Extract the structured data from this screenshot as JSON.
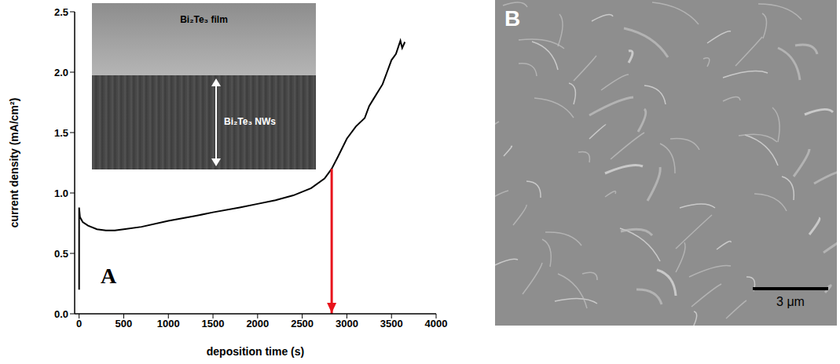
{
  "chart_data": {
    "type": "line",
    "panel_label": "A",
    "x_label": "deposition time (s)",
    "y_label": "current density (mA/cm²)",
    "x": [
      0,
      0,
      10,
      40,
      100,
      200,
      300,
      400,
      500,
      700,
      1000,
      1300,
      1500,
      1800,
      2000,
      2200,
      2400,
      2600,
      2750,
      2830,
      2900,
      3000,
      3100,
      3200,
      3250,
      3300,
      3400,
      3450,
      3500,
      3550,
      3600,
      3620,
      3650
    ],
    "values": [
      0.2,
      0.88,
      0.8,
      0.76,
      0.73,
      0.7,
      0.69,
      0.69,
      0.7,
      0.72,
      0.77,
      0.81,
      0.84,
      0.88,
      0.91,
      0.94,
      0.98,
      1.04,
      1.12,
      1.2,
      1.3,
      1.45,
      1.55,
      1.62,
      1.72,
      1.78,
      1.9,
      2.0,
      2.1,
      2.15,
      2.26,
      2.2,
      2.25
    ],
    "color": "#000000",
    "xlim": [
      -50,
      4000
    ],
    "xticks": [
      0,
      500,
      1000,
      1500,
      2000,
      2500,
      3000,
      3500,
      4000
    ],
    "ylim": [
      0,
      2.5
    ],
    "yticks": [
      {
        "value": 0,
        "label": "0.0"
      },
      {
        "value": 0.5,
        "label": "0.5"
      },
      {
        "value": 1,
        "label": "1.0"
      },
      {
        "value": 1.5,
        "label": "1.5"
      },
      {
        "value": 2,
        "label": "2.0"
      },
      {
        "value": 2.5,
        "label": "2.5"
      }
    ],
    "grid": false,
    "arrow": {
      "x": 2830,
      "y": [
        1.2,
        0
      ],
      "color": "#e8141c"
    },
    "inset_labels": [
      "Bi₂Te₃ film",
      "Bi₂Te₃ NWs"
    ]
  },
  "image_panel": {
    "label": "B",
    "scale_bar": "3 μm"
  }
}
